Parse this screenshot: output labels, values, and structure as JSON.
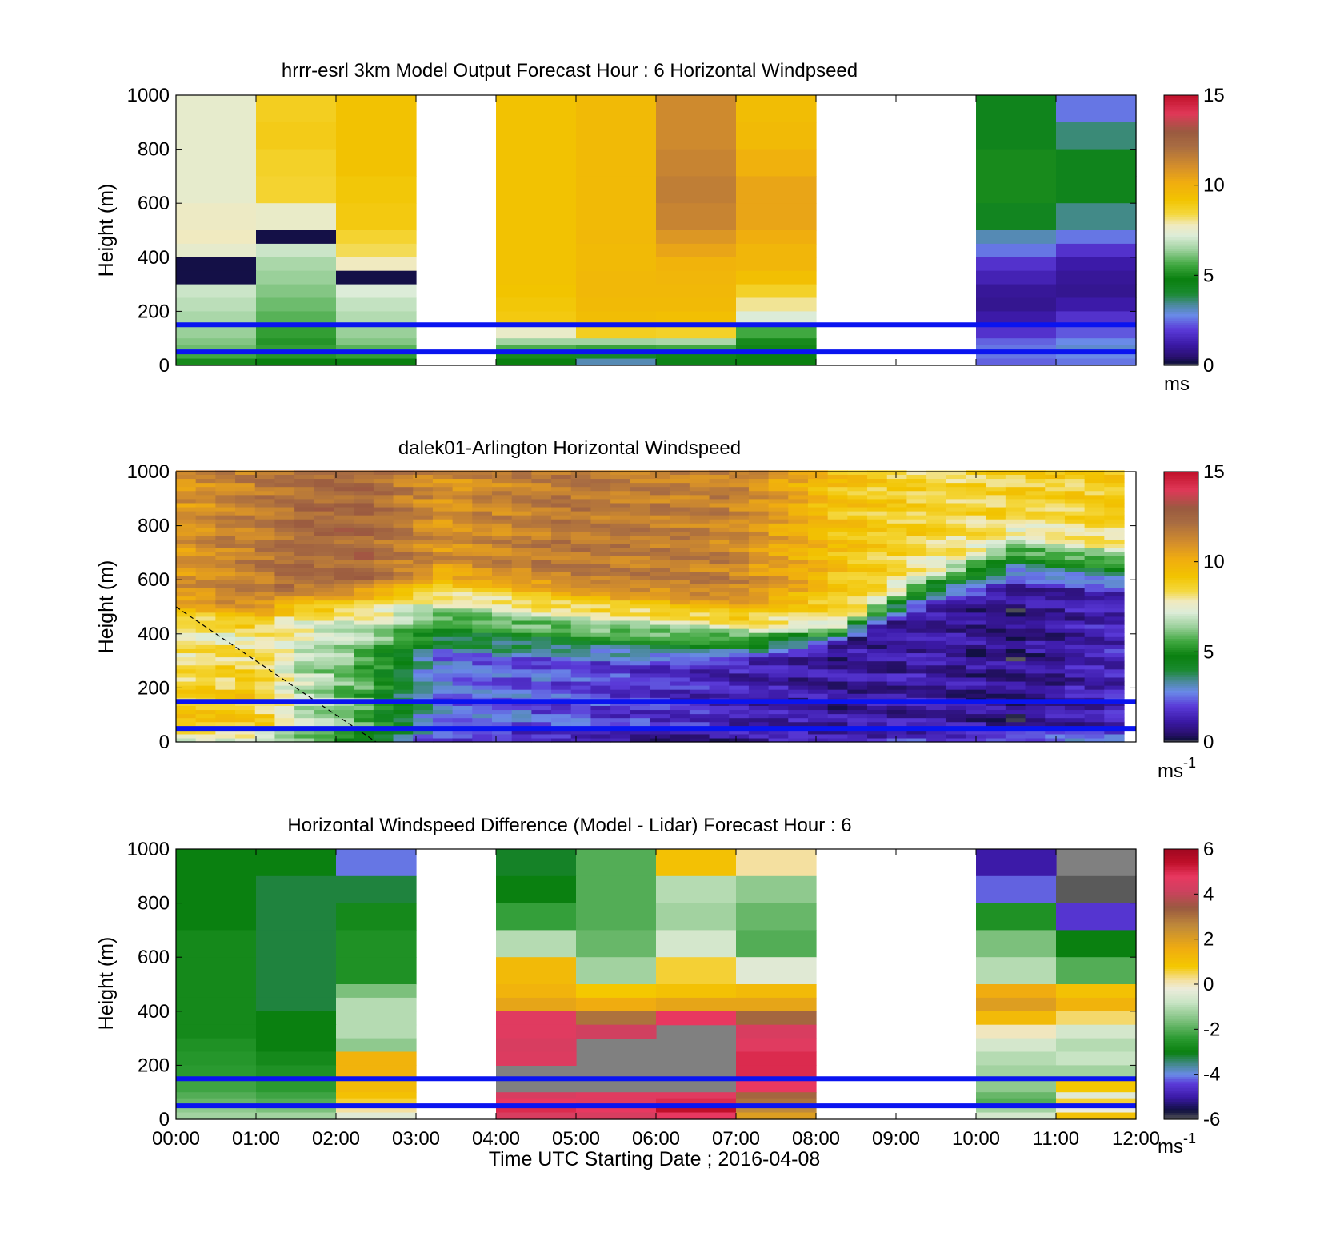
{
  "figure": {
    "xlabel": "Time UTC  Starting Date ; 2016-04-08",
    "x_ticks": [
      "00:00",
      "01:00",
      "02:00",
      "03:00",
      "04:00",
      "05:00",
      "06:00",
      "07:00",
      "08:00",
      "09:00",
      "10:00",
      "11:00",
      "12:00"
    ]
  },
  "chart_data": [
    {
      "type": "heatmap",
      "title": "hrrr-esrl 3km Model Output   Forecast Hour : 6 Horizontal Windpseed",
      "ylabel": "Height (m)",
      "ylim": [
        0,
        1000
      ],
      "y_ticks": [
        "0",
        "200",
        "400",
        "600",
        "800",
        "1000"
      ],
      "x": [
        0,
        1,
        2,
        3,
        4,
        5,
        6,
        7,
        8,
        9,
        10,
        11
      ],
      "heights": [
        1000,
        900,
        800,
        700,
        600,
        500,
        450,
        400,
        350,
        300,
        250,
        200,
        150,
        100,
        75,
        50,
        25
      ],
      "values": [
        [
          7.5,
          8.8,
          9.3,
          null,
          9.3,
          9.6,
          11.2,
          9.5,
          null,
          null,
          4.5,
          2.6
        ],
        [
          7.5,
          8.9,
          9.3,
          null,
          9.3,
          9.6,
          11.2,
          9.6,
          null,
          null,
          4.5,
          3.6
        ],
        [
          7.5,
          8.7,
          9.3,
          null,
          9.3,
          9.6,
          11.4,
          10.0,
          null,
          null,
          5.0,
          4.5
        ],
        [
          7.5,
          8.6,
          9.1,
          null,
          9.3,
          9.6,
          11.6,
          10.4,
          null,
          null,
          5.0,
          4.5
        ],
        [
          7.7,
          7.6,
          9.0,
          null,
          9.3,
          9.6,
          11.4,
          10.4,
          null,
          null,
          4.4,
          3.5
        ],
        [
          7.8,
          0.2,
          8.6,
          null,
          9.3,
          9.7,
          10.8,
          10.1,
          null,
          null,
          3.2,
          2.6
        ],
        [
          7.5,
          7.0,
          8.3,
          null,
          9.3,
          9.6,
          10.4,
          9.8,
          null,
          null,
          2.6,
          1.8
        ],
        [
          0.2,
          6.6,
          7.8,
          null,
          9.3,
          9.6,
          9.9,
          9.8,
          null,
          null,
          1.8,
          1.2
        ],
        [
          0.2,
          6.4,
          0.2,
          null,
          9.3,
          9.7,
          9.8,
          9.4,
          null,
          null,
          1.4,
          1.0
        ],
        [
          7.0,
          6.2,
          7.2,
          null,
          9.2,
          9.7,
          9.7,
          8.7,
          null,
          null,
          1.0,
          0.9
        ],
        [
          6.8,
          6.0,
          6.9,
          null,
          9.1,
          9.6,
          9.6,
          8.0,
          null,
          null,
          0.9,
          1.2
        ],
        [
          6.6,
          5.8,
          6.7,
          null,
          9.0,
          9.5,
          9.4,
          7.2,
          null,
          null,
          1.2,
          1.8
        ],
        [
          6.4,
          5.4,
          6.4,
          null,
          7.6,
          8.8,
          8.7,
          5.6,
          null,
          null,
          1.8,
          2.3
        ],
        [
          6.2,
          5.2,
          6.2,
          null,
          6.5,
          6.5,
          6.6,
          5.0,
          null,
          null,
          2.4,
          2.8
        ],
        [
          6.0,
          5.4,
          5.8,
          null,
          5.7,
          5.5,
          5.6,
          4.9,
          null,
          null,
          2.6,
          3.0
        ],
        [
          5.6,
          5.2,
          5.4,
          null,
          5.0,
          4.2,
          4.9,
          4.8,
          null,
          null,
          2.6,
          2.8
        ],
        [
          5.0,
          4.8,
          4.8,
          null,
          4.8,
          3.2,
          4.6,
          4.8,
          null,
          null,
          2.4,
          2.6
        ]
      ],
      "colorbar": {
        "min": 0,
        "max": 15,
        "ticks": [
          "0",
          "5",
          "10",
          "15"
        ],
        "unit": "ms"
      },
      "reference_lines_m": [
        150,
        50
      ]
    },
    {
      "type": "heatmap",
      "title": "dalek01-Arlington  Horizontal Windspeed",
      "ylabel": "Height (m)",
      "ylim": [
        0,
        1000
      ],
      "y_ticks": [
        "0",
        "200",
        "400",
        "600",
        "800",
        "1000"
      ],
      "x_range_hours": [
        0,
        11.85
      ],
      "columns": 48,
      "profile_keyframes": [
        {
          "t": 0.0,
          "top": 10.8,
          "jet_h": 430,
          "low": 9.0,
          "low_h": 120,
          "sfc": 6.5
        },
        {
          "t": 1.0,
          "top": 11.6,
          "jet_h": 400,
          "low": 9.0,
          "low_h": 180,
          "sfc": 6.5
        },
        {
          "t": 1.5,
          "top": 12.2,
          "jet_h": 460,
          "low": 7.0,
          "low_h": 300,
          "sfc": 6.0
        },
        {
          "t": 2.3,
          "top": 12.4,
          "jet_h": 480,
          "low": 5.8,
          "low_h": 300,
          "sfc": 5.0
        },
        {
          "t": 3.3,
          "top": 11.0,
          "jet_h": 540,
          "low": 2.6,
          "low_h": 320,
          "sfc": 1.6
        },
        {
          "t": 5.0,
          "top": 11.8,
          "jet_h": 480,
          "low": 2.2,
          "low_h": 300,
          "sfc": 0.8
        },
        {
          "t": 7.0,
          "top": 11.4,
          "jet_h": 430,
          "low": 1.4,
          "low_h": 280,
          "sfc": 1.0
        },
        {
          "t": 8.3,
          "top": 9.2,
          "jet_h": 440,
          "low": 1.0,
          "low_h": 360,
          "sfc": 1.2
        },
        {
          "t": 9.3,
          "top": 8.6,
          "jet_h": 620,
          "low": 1.2,
          "low_h": 480,
          "sfc": 2.0
        },
        {
          "t": 10.5,
          "top": 8.6,
          "jet_h": 780,
          "low": 0.8,
          "low_h": 560,
          "sfc": 2.8
        },
        {
          "t": 11.85,
          "top": 9.0,
          "jet_h": 720,
          "low": 1.6,
          "low_h": 560,
          "sfc": 2.6
        }
      ],
      "colorbar": {
        "min": 0,
        "max": 15,
        "ticks": [
          "0",
          "5",
          "10",
          "15"
        ],
        "unit": "ms",
        "unit_exp": "-1"
      },
      "reference_lines_m": [
        150,
        50
      ],
      "dashed_line": {
        "start": {
          "t": 0.0,
          "h": 500
        },
        "end": {
          "t": 2.5,
          "h": 0
        }
      }
    },
    {
      "type": "heatmap",
      "title": "Horizontal Windspeed Difference (Model - Lidar) Forecast Hour : 6",
      "ylabel": "Height (m)",
      "ylim": [
        0,
        1000
      ],
      "y_ticks": [
        "0",
        "200",
        "400",
        "600",
        "800",
        "1000"
      ],
      "x": [
        0,
        1,
        2,
        3,
        4,
        5,
        6,
        7,
        8,
        9,
        10,
        11
      ],
      "heights": [
        1000,
        900,
        800,
        700,
        600,
        500,
        450,
        400,
        350,
        300,
        250,
        200,
        150,
        100,
        75,
        50,
        25
      ],
      "values": [
        [
          -3.0,
          -3.0,
          -4.1,
          null,
          -3.1,
          -2.0,
          1.0,
          0.2,
          null,
          null,
          -5.0,
          null
        ],
        [
          -3.0,
          -3.2,
          -3.2,
          null,
          -3.0,
          -2.0,
          -1.0,
          -1.4,
          null,
          null,
          -4.2,
          -6.0
        ],
        [
          -3.0,
          -3.2,
          -2.8,
          null,
          -2.3,
          -2.0,
          -1.2,
          -1.8,
          null,
          null,
          -2.6,
          -4.5
        ],
        [
          -2.8,
          -3.2,
          -2.6,
          null,
          -1.0,
          -1.8,
          -0.6,
          -2.0,
          null,
          null,
          -1.6,
          -3.0
        ],
        [
          -2.8,
          -3.2,
          -2.6,
          null,
          1.2,
          -1.2,
          0.6,
          -0.4,
          null,
          null,
          -1.0,
          -2.0
        ],
        [
          -2.8,
          -3.2,
          -1.6,
          null,
          1.4,
          0.8,
          1.0,
          1.2,
          null,
          null,
          1.6,
          1.0
        ],
        [
          -2.8,
          -3.2,
          -1.0,
          null,
          1.8,
          1.6,
          1.8,
          1.8,
          null,
          null,
          2.0,
          1.4
        ],
        [
          -2.8,
          -3.0,
          -1.0,
          null,
          4.6,
          3.0,
          4.8,
          3.2,
          null,
          null,
          1.2,
          0.4
        ],
        [
          -2.8,
          -3.0,
          -1.0,
          null,
          4.6,
          4.2,
          null,
          4.4,
          null,
          null,
          0.0,
          -0.6
        ],
        [
          -2.6,
          -3.0,
          -1.4,
          null,
          4.4,
          null,
          null,
          4.6,
          null,
          null,
          -0.6,
          -1.0
        ],
        [
          -2.5,
          -2.8,
          1.4,
          null,
          4.5,
          null,
          null,
          5.0,
          null,
          null,
          -1.0,
          -0.8
        ],
        [
          -2.4,
          -2.6,
          1.4,
          null,
          null,
          null,
          null,
          5.0,
          null,
          null,
          -1.2,
          -1.2
        ],
        [
          -2.2,
          -2.4,
          1.2,
          null,
          null,
          null,
          null,
          4.8,
          null,
          null,
          -1.4,
          0.8
        ],
        [
          -2.0,
          -2.2,
          1.0,
          null,
          4.4,
          4.6,
          4.6,
          3.2,
          null,
          null,
          -1.8,
          -0.4
        ],
        [
          -1.8,
          -2.0,
          0.6,
          null,
          4.8,
          4.6,
          5.0,
          3.0,
          null,
          null,
          -2.0,
          0.6
        ],
        [
          -1.4,
          -1.6,
          0.2,
          null,
          5.0,
          4.8,
          5.4,
          2.6,
          null,
          null,
          -1.2,
          -0.2
        ],
        [
          -1.2,
          -1.2,
          -0.4,
          null,
          4.4,
          4.4,
          4.8,
          2.0,
          null,
          null,
          -0.6,
          1.0
        ]
      ],
      "colorbar": {
        "min": -6,
        "max": 6,
        "ticks": [
          "-6",
          "-4",
          "-2",
          "0",
          "2",
          "4",
          "6"
        ],
        "unit": "ms",
        "unit_exp": "-1"
      },
      "reference_lines_m": [
        150,
        50
      ]
    }
  ]
}
